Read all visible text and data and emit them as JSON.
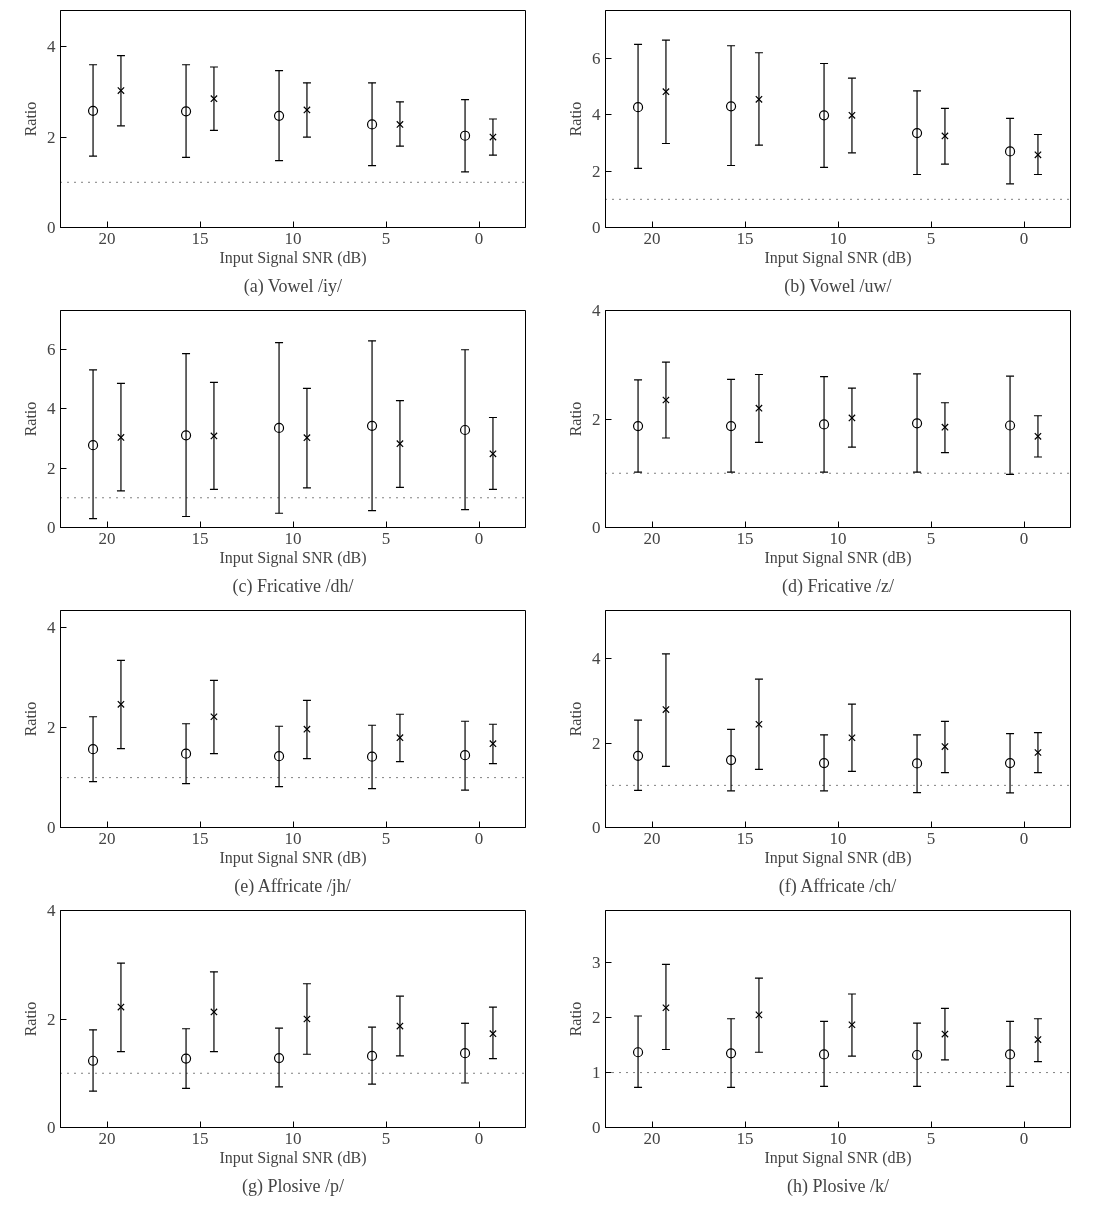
{
  "chart_data": [
    {
      "type": "scatter",
      "title": "(a) Vowel /iy/",
      "xlabel": "Input Signal SNR (dB)",
      "ylabel": "Ratio",
      "xlim": [
        22.5,
        -2.5
      ],
      "ylim": [
        0,
        4.8
      ],
      "xticks": [
        20,
        15,
        10,
        5,
        0
      ],
      "yticks": [
        0,
        2,
        4
      ],
      "grid": false,
      "ref_lines": [
        {
          "axis": "y",
          "value": 1,
          "line_style": "dotted"
        }
      ],
      "series": [
        {
          "marker": "circle",
          "color": "#000000",
          "x": [
            20.75,
            15.75,
            10.75,
            5.75,
            0.75
          ],
          "values": [
            2.58,
            2.57,
            2.47,
            2.28,
            2.03
          ],
          "errors": [
            [
              1.58,
              3.6
            ],
            [
              1.55,
              3.6
            ],
            [
              1.48,
              3.47
            ],
            [
              1.37,
              3.2
            ],
            [
              1.23,
              2.83
            ]
          ]
        },
        {
          "marker": "cross",
          "color": "#000000",
          "x": [
            19.25,
            14.25,
            9.25,
            4.25,
            -0.75
          ],
          "values": [
            3.03,
            2.85,
            2.6,
            2.28,
            2.0
          ],
          "errors": [
            [
              2.25,
              3.8
            ],
            [
              2.15,
              3.55
            ],
            [
              2.0,
              3.2
            ],
            [
              1.8,
              2.78
            ],
            [
              1.6,
              2.4
            ]
          ]
        }
      ]
    },
    {
      "type": "scatter",
      "title": "(b) Vowel /uw/",
      "xlabel": "Input Signal SNR (dB)",
      "ylabel": "Ratio",
      "xlim": [
        22.5,
        -2.5
      ],
      "ylim": [
        0,
        7.7
      ],
      "xticks": [
        20,
        15,
        10,
        5,
        0
      ],
      "yticks": [
        0,
        2,
        4,
        6
      ],
      "grid": false,
      "ref_lines": [
        {
          "axis": "y",
          "value": 1,
          "line_style": "dotted"
        }
      ],
      "series": [
        {
          "marker": "circle",
          "color": "#000000",
          "x": [
            20.75,
            15.75,
            10.75,
            5.75,
            0.75
          ],
          "values": [
            4.27,
            4.3,
            3.98,
            3.35,
            2.7
          ],
          "errors": [
            [
              2.1,
              6.5
            ],
            [
              2.2,
              6.45
            ],
            [
              2.13,
              5.82
            ],
            [
              1.88,
              4.85
            ],
            [
              1.55,
              3.87
            ]
          ]
        },
        {
          "marker": "cross",
          "color": "#000000",
          "x": [
            19.25,
            14.25,
            9.25,
            4.25,
            -0.75
          ],
          "values": [
            4.82,
            4.55,
            3.98,
            3.25,
            2.58
          ],
          "errors": [
            [
              2.98,
              6.65
            ],
            [
              2.92,
              6.2
            ],
            [
              2.65,
              5.3
            ],
            [
              2.25,
              4.23
            ],
            [
              1.88,
              3.3
            ]
          ]
        }
      ]
    },
    {
      "type": "scatter",
      "title": "(c) Fricative /dh/",
      "xlabel": "Input Signal SNR (dB)",
      "ylabel": "Ratio",
      "xlim": [
        22.5,
        -2.5
      ],
      "ylim": [
        0,
        7.3
      ],
      "xticks": [
        20,
        15,
        10,
        5,
        0
      ],
      "yticks": [
        0,
        2,
        4,
        6
      ],
      "grid": false,
      "ref_lines": [
        {
          "axis": "y",
          "value": 1,
          "line_style": "dotted"
        }
      ],
      "series": [
        {
          "marker": "circle",
          "color": "#000000",
          "x": [
            20.75,
            15.75,
            10.75,
            5.75,
            0.75
          ],
          "values": [
            2.77,
            3.1,
            3.35,
            3.42,
            3.28
          ],
          "errors": [
            [
              0.3,
              5.3
            ],
            [
              0.37,
              5.85
            ],
            [
              0.48,
              6.22
            ],
            [
              0.57,
              6.28
            ],
            [
              0.6,
              5.98
            ]
          ]
        },
        {
          "marker": "cross",
          "color": "#000000",
          "x": [
            19.25,
            14.25,
            9.25,
            4.25,
            -0.75
          ],
          "values": [
            3.03,
            3.08,
            3.02,
            2.82,
            2.48
          ],
          "errors": [
            [
              1.23,
              4.85
            ],
            [
              1.28,
              4.88
            ],
            [
              1.33,
              4.68
            ],
            [
              1.35,
              4.27
            ],
            [
              1.28,
              3.7
            ]
          ]
        }
      ]
    },
    {
      "type": "scatter",
      "title": "(d) Fricative /z/",
      "xlabel": "Input Signal SNR (dB)",
      "ylabel": "Ratio",
      "xlim": [
        22.5,
        -2.5
      ],
      "ylim": [
        0,
        4
      ],
      "xticks": [
        20,
        15,
        10,
        5,
        0
      ],
      "yticks": [
        0,
        2,
        4
      ],
      "grid": false,
      "ref_lines": [
        {
          "axis": "y",
          "value": 1,
          "line_style": "dotted"
        }
      ],
      "series": [
        {
          "marker": "circle",
          "color": "#000000",
          "x": [
            20.75,
            15.75,
            10.75,
            5.75,
            0.75
          ],
          "values": [
            1.87,
            1.87,
            1.9,
            1.92,
            1.88
          ],
          "errors": [
            [
              1.02,
              2.72
            ],
            [
              1.02,
              2.73
            ],
            [
              1.02,
              2.78
            ],
            [
              1.02,
              2.83
            ],
            [
              0.98,
              2.79
            ]
          ]
        },
        {
          "marker": "cross",
          "color": "#000000",
          "x": [
            19.25,
            14.25,
            9.25,
            4.25,
            -0.75
          ],
          "values": [
            2.35,
            2.2,
            2.02,
            1.85,
            1.68
          ],
          "errors": [
            [
              1.65,
              3.05
            ],
            [
              1.57,
              2.82
            ],
            [
              1.48,
              2.57
            ],
            [
              1.38,
              2.3
            ],
            [
              1.3,
              2.06
            ]
          ]
        }
      ]
    },
    {
      "type": "scatter",
      "title": "(e) Affricate /jh/",
      "xlabel": "Input Signal SNR (dB)",
      "ylabel": "Ratio",
      "xlim": [
        22.5,
        -2.5
      ],
      "ylim": [
        0,
        4.35
      ],
      "xticks": [
        20,
        15,
        10,
        5,
        0
      ],
      "yticks": [
        0,
        2,
        4
      ],
      "grid": false,
      "ref_lines": [
        {
          "axis": "y",
          "value": 1,
          "line_style": "dotted"
        }
      ],
      "series": [
        {
          "marker": "circle",
          "color": "#000000",
          "x": [
            20.75,
            15.75,
            10.75,
            5.75,
            0.75
          ],
          "values": [
            1.57,
            1.48,
            1.43,
            1.42,
            1.45
          ],
          "errors": [
            [
              0.92,
              2.22
            ],
            [
              0.88,
              2.08
            ],
            [
              0.82,
              2.03
            ],
            [
              0.78,
              2.05
            ],
            [
              0.75,
              2.13
            ]
          ]
        },
        {
          "marker": "cross",
          "color": "#000000",
          "x": [
            19.25,
            14.25,
            9.25,
            4.25,
            -0.75
          ],
          "values": [
            2.47,
            2.22,
            1.97,
            1.8,
            1.68
          ],
          "errors": [
            [
              1.58,
              3.35
            ],
            [
              1.48,
              2.95
            ],
            [
              1.38,
              2.55
            ],
            [
              1.32,
              2.27
            ],
            [
              1.28,
              2.07
            ]
          ]
        }
      ]
    },
    {
      "type": "scatter",
      "title": "(f) Affricate /ch/",
      "xlabel": "Input Signal SNR (dB)",
      "ylabel": "Ratio",
      "xlim": [
        22.5,
        -2.5
      ],
      "ylim": [
        0,
        5.15
      ],
      "xticks": [
        20,
        15,
        10,
        5,
        0
      ],
      "yticks": [
        0,
        2,
        4
      ],
      "grid": false,
      "ref_lines": [
        {
          "axis": "y",
          "value": 1,
          "line_style": "dotted"
        }
      ],
      "series": [
        {
          "marker": "circle",
          "color": "#000000",
          "x": [
            20.75,
            15.75,
            10.75,
            5.75,
            0.75
          ],
          "values": [
            1.7,
            1.6,
            1.53,
            1.52,
            1.53
          ],
          "errors": [
            [
              0.88,
              2.55
            ],
            [
              0.87,
              2.33
            ],
            [
              0.87,
              2.2
            ],
            [
              0.83,
              2.2
            ],
            [
              0.82,
              2.23
            ]
          ]
        },
        {
          "marker": "cross",
          "color": "#000000",
          "x": [
            19.25,
            14.25,
            9.25,
            4.25,
            -0.75
          ],
          "values": [
            2.8,
            2.45,
            2.13,
            1.92,
            1.78
          ],
          "errors": [
            [
              1.45,
              4.12
            ],
            [
              1.38,
              3.52
            ],
            [
              1.33,
              2.93
            ],
            [
              1.3,
              2.52
            ],
            [
              1.3,
              2.25
            ]
          ]
        }
      ]
    },
    {
      "type": "scatter",
      "title": "(g) Plosive /p/",
      "xlabel": "Input Signal SNR (dB)",
      "ylabel": "Ratio",
      "xlim": [
        22.5,
        -2.5
      ],
      "ylim": [
        0,
        4
      ],
      "xticks": [
        20,
        15,
        10,
        5,
        0
      ],
      "yticks": [
        0,
        2,
        4
      ],
      "grid": false,
      "ref_lines": [
        {
          "axis": "y",
          "value": 1,
          "line_style": "dotted"
        }
      ],
      "series": [
        {
          "marker": "circle",
          "color": "#000000",
          "x": [
            20.75,
            15.75,
            10.75,
            5.75,
            0.75
          ],
          "values": [
            1.23,
            1.27,
            1.28,
            1.32,
            1.37
          ],
          "errors": [
            [
              0.67,
              1.8
            ],
            [
              0.72,
              1.82
            ],
            [
              0.75,
              1.83
            ],
            [
              0.8,
              1.85
            ],
            [
              0.82,
              1.92
            ]
          ]
        },
        {
          "marker": "cross",
          "color": "#000000",
          "x": [
            19.25,
            14.25,
            9.25,
            4.25,
            -0.75
          ],
          "values": [
            2.22,
            2.13,
            2.0,
            1.87,
            1.73
          ],
          "errors": [
            [
              1.4,
              3.03
            ],
            [
              1.4,
              2.87
            ],
            [
              1.35,
              2.65
            ],
            [
              1.32,
              2.42
            ],
            [
              1.27,
              2.22
            ]
          ]
        }
      ]
    },
    {
      "type": "scatter",
      "title": "(h) Plosive /k/",
      "xlabel": "Input Signal SNR (dB)",
      "ylabel": "Ratio",
      "xlim": [
        22.5,
        -2.5
      ],
      "ylim": [
        0,
        3.95
      ],
      "xticks": [
        20,
        15,
        10,
        5,
        0
      ],
      "yticks": [
        0,
        1,
        2,
        3
      ],
      "grid": false,
      "ref_lines": [
        {
          "axis": "y",
          "value": 1,
          "line_style": "dotted"
        }
      ],
      "series": [
        {
          "marker": "circle",
          "color": "#000000",
          "x": [
            20.75,
            15.75,
            10.75,
            5.75,
            0.75
          ],
          "values": [
            1.37,
            1.35,
            1.33,
            1.32,
            1.33
          ],
          "errors": [
            [
              0.73,
              2.03
            ],
            [
              0.73,
              1.98
            ],
            [
              0.75,
              1.93
            ],
            [
              0.75,
              1.9
            ],
            [
              0.75,
              1.93
            ]
          ]
        },
        {
          "marker": "cross",
          "color": "#000000",
          "x": [
            19.25,
            14.25,
            9.25,
            4.25,
            -0.75
          ],
          "values": [
            2.18,
            2.05,
            1.87,
            1.7,
            1.6
          ],
          "errors": [
            [
              1.42,
              2.97
            ],
            [
              1.37,
              2.72
            ],
            [
              1.3,
              2.43
            ],
            [
              1.23,
              2.17
            ],
            [
              1.2,
              1.98
            ]
          ]
        }
      ]
    }
  ]
}
